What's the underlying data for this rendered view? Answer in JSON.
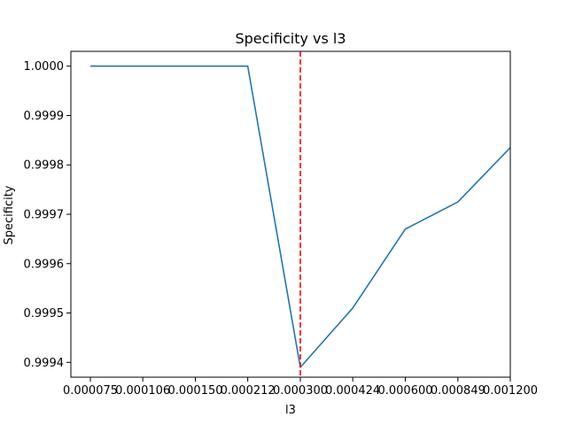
{
  "chart_data": {
    "type": "line",
    "title": "Specificity vs l3",
    "xlabel": "l3",
    "ylabel": "Specificity",
    "x": [
      7.5e-05,
      0.000106,
      0.00015,
      0.000212,
      0.0003,
      0.000424,
      0.0006,
      0.000849,
      0.0012
    ],
    "x_tick_labels": [
      "0.000075",
      "0.000106",
      "0.000150",
      "0.000212",
      "0.000300",
      "0.000424",
      "0.000600",
      "0.000849",
      "0.001200"
    ],
    "series": [
      {
        "color": "#1f77b4",
        "values": [
          1.0,
          1.0,
          1.0,
          1.0,
          0.99939,
          0.99951,
          0.99967,
          0.999725,
          0.999835
        ]
      }
    ],
    "y_ticks": [
      0.9994,
      0.9995,
      0.9996,
      0.9997,
      0.9998,
      0.9999,
      1.0
    ],
    "y_tick_labels": [
      "0.9994",
      "0.9995",
      "0.9996",
      "0.9997",
      "0.9998",
      "0.9999",
      "1.0000"
    ],
    "ylim": [
      0.99937,
      1.00003
    ],
    "xscale": "log",
    "vline": {
      "x": 0.0003,
      "color": "#ff0000",
      "style": "dashed"
    },
    "grid": false,
    "legend": "none"
  }
}
